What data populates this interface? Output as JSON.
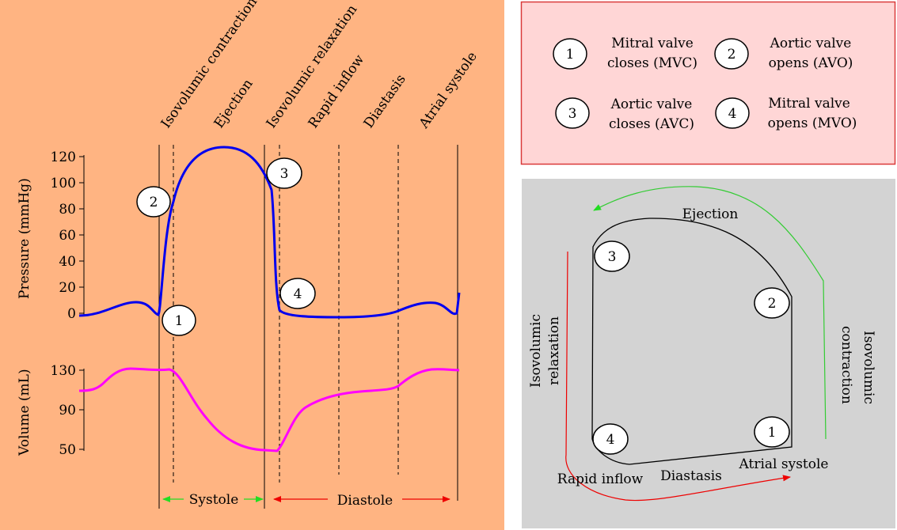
{
  "phases": [
    "Isovolumic contraction",
    "Ejection",
    "Isovolumic relaxation",
    "Rapid inflow",
    "Diastasis",
    "Atrial systole"
  ],
  "pressure_axis": {
    "label": "Pressure (mmHg)",
    "ticks": [
      "120",
      "100",
      "80",
      "60",
      "40",
      "20",
      "0"
    ]
  },
  "volume_axis": {
    "label": "Volume (mL)",
    "ticks": [
      "130",
      "90",
      "50"
    ]
  },
  "markers": [
    "1",
    "2",
    "3",
    "4"
  ],
  "cycle_labels": {
    "systole": "Systole",
    "diastole": "Diastole"
  },
  "legend": {
    "items": [
      {
        "num": "1",
        "line1": "Mitral valve",
        "line2": "closes (MVC)"
      },
      {
        "num": "2",
        "line1": "Aortic valve",
        "line2": "opens (AVO)"
      },
      {
        "num": "3",
        "line1": "Aortic valve",
        "line2": "closes (AVC)"
      },
      {
        "num": "4",
        "line1": "Mitral valve",
        "line2": "opens (MVO)"
      }
    ]
  },
  "loop": {
    "ejection": "Ejection",
    "iso_relax_1": "Isovolumic",
    "iso_relax_2": "relaxation",
    "iso_contract_1": "Isovolumic",
    "iso_contract_2": "contraction",
    "rapid_inflow": "Rapid inflow",
    "diastasis": "Diastasis",
    "atrial_systole": "Atrial systole"
  },
  "colors": {
    "left_panel_bg": "#ffb482",
    "legend_bg": "#ffd6d6",
    "legend_border": "#d93a3a",
    "loop_bg": "#d3d3d3",
    "pressure_curve": "#0000ee",
    "volume_curve": "#ff00ff",
    "systole_arrow": "#22dd22",
    "diastole_arrow": "#ee0000",
    "loop_green": "#33cc33",
    "loop_red": "#ee0000"
  }
}
